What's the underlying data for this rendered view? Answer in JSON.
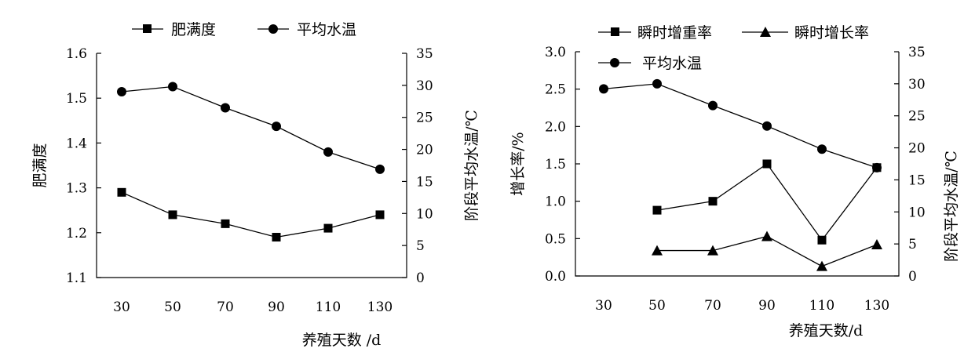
{
  "chart_data": [
    {
      "type": "line",
      "x": [
        30,
        50,
        70,
        90,
        110,
        130
      ],
      "xlabel": "养殖天数 /d",
      "ylabel_left": "肥满度",
      "ylabel_right": "阶段平均水温/℃",
      "ylim_left": [
        1.1,
        1.6
      ],
      "ylim_right": [
        0,
        35
      ],
      "yticks_left": [
        "1.1",
        "1.2",
        "1.3",
        "1.4",
        "1.5",
        "1.6"
      ],
      "yticks_right": [
        "0",
        "5",
        "10",
        "15",
        "20",
        "25",
        "30",
        "35"
      ],
      "xticks": [
        "30",
        "50",
        "70",
        "90",
        "110",
        "130"
      ],
      "legend": [
        "肥满度",
        "平均水温"
      ],
      "series": [
        {
          "name": "肥满度",
          "axis": "left",
          "marker": "square",
          "values": [
            1.29,
            1.24,
            1.22,
            1.19,
            1.21,
            1.24
          ]
        },
        {
          "name": "平均水温",
          "axis": "right",
          "marker": "circle",
          "values": [
            29.0,
            29.8,
            26.5,
            23.6,
            19.6,
            16.9
          ]
        }
      ]
    },
    {
      "type": "line",
      "x": [
        30,
        50,
        70,
        90,
        110,
        130
      ],
      "xlabel": "养殖天数/d",
      "ylabel_left": "增长率/%",
      "ylabel_right": "阶段平均水温/℃",
      "ylim_left": [
        0,
        3.0
      ],
      "ylim_right": [
        0,
        35
      ],
      "yticks_left": [
        "0.0",
        "0.5",
        "1.0",
        "1.5",
        "2.0",
        "2.5",
        "3.0"
      ],
      "yticks_right": [
        "0",
        "5",
        "10",
        "15",
        "20",
        "25",
        "30",
        "35"
      ],
      "xticks": [
        "30",
        "50",
        "70",
        "90",
        "110",
        "130"
      ],
      "legend": [
        "瞬时增重率",
        "瞬时增长率",
        "平均水温"
      ],
      "series": [
        {
          "name": "瞬时增重率",
          "axis": "left",
          "marker": "square",
          "values": [
            null,
            0.88,
            1.0,
            1.5,
            0.48,
            1.45
          ]
        },
        {
          "name": "瞬时增长率",
          "axis": "left",
          "marker": "triangle",
          "values": [
            null,
            0.34,
            0.34,
            0.53,
            0.13,
            0.42
          ]
        },
        {
          "name": "平均水温",
          "axis": "right",
          "marker": "circle",
          "values": [
            29.2,
            30.0,
            26.6,
            23.4,
            19.8,
            16.9
          ]
        }
      ]
    }
  ]
}
